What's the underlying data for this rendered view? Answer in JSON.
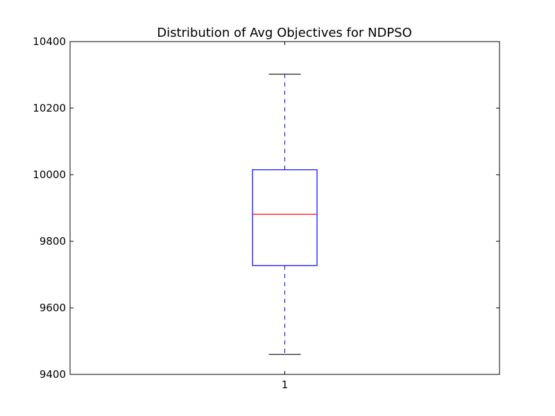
{
  "chart_data": {
    "type": "box",
    "title": "Distribution of Avg Objectives for NDPSO",
    "xlabel": "",
    "ylabel": "",
    "categories": [
      "1"
    ],
    "ylim": [
      9400,
      10400
    ],
    "yticks": [
      "9400",
      "9600",
      "9800",
      "10000",
      "10200",
      "10400"
    ],
    "grid": false,
    "boxes": [
      {
        "category": "1",
        "whisker_low": 9460,
        "q1": 9727,
        "median": 9881,
        "q3": 10015,
        "whisker_high": 10302
      }
    ],
    "colors": {
      "box": "#0000ff",
      "whisker": "#0000ff",
      "median": "#ff0000",
      "cap": "#000000"
    }
  }
}
